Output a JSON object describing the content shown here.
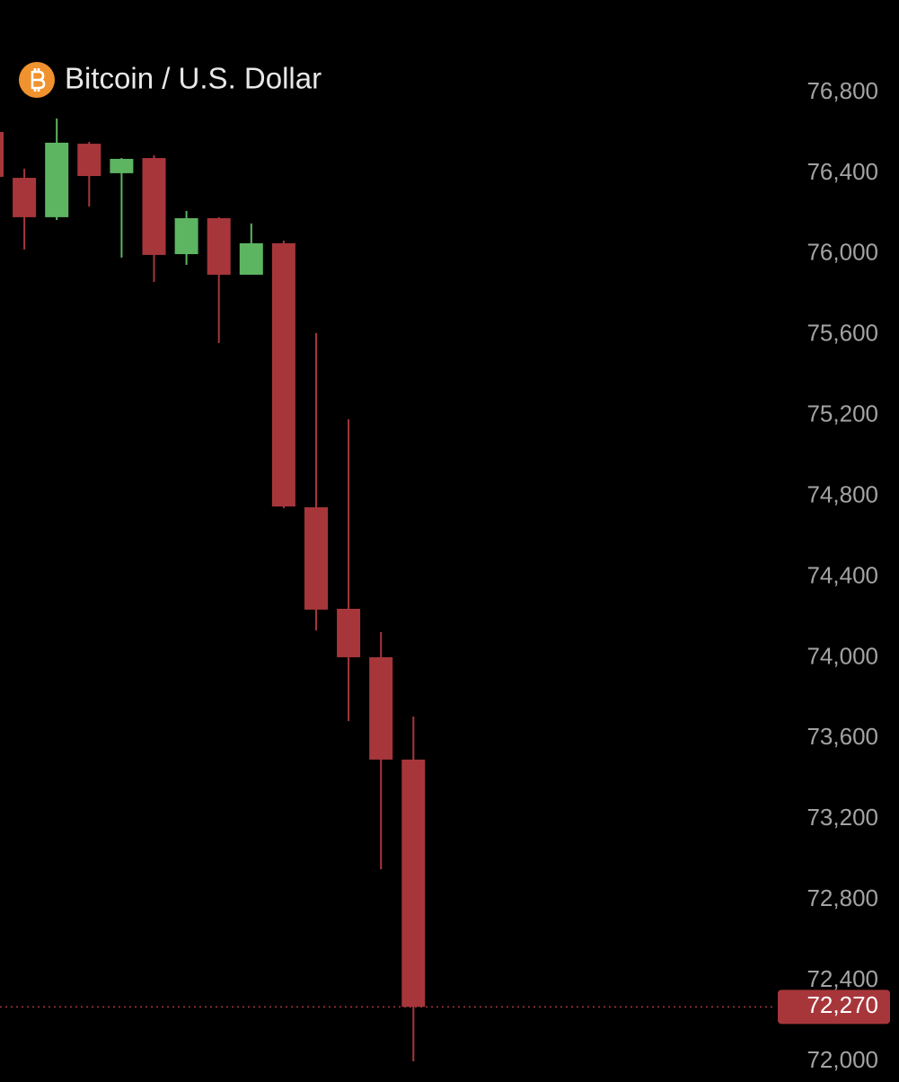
{
  "chart_data": {
    "type": "candlestick",
    "title": "Bitcoin / U.S. Dollar",
    "categories": [
      null,
      null,
      null,
      null,
      null,
      null,
      null,
      null,
      null,
      null,
      null,
      null,
      null,
      null
    ],
    "open": [
      76604,
      76377,
      76182,
      76546,
      76400,
      76475,
      75999,
      76177,
      75897,
      76053,
      74745,
      74242,
      74002,
      73495
    ],
    "high": [
      76610,
      76422,
      76671,
      76555,
      76475,
      76489,
      76213,
      76182,
      76151,
      76066,
      75608,
      75181,
      74127,
      73708
    ],
    "low": [
      76380,
      76022,
      76168,
      76235,
      75982,
      75861,
      75946,
      75559,
      75897,
      74740,
      74135,
      73686,
      72952,
      72000
    ],
    "close": [
      76382,
      76182,
      76551,
      76386,
      76471,
      75995,
      76177,
      75897,
      76053,
      74749,
      74238,
      74002,
      73495,
      72270
    ],
    "up_color": "#5db562",
    "down_color": "#a7363b",
    "ylim": [
      71920,
      77258
    ],
    "yticks": [
      {
        "value": 76800,
        "label": "76,800"
      },
      {
        "value": 76400,
        "label": "76,400"
      },
      {
        "value": 76000,
        "label": "76,000"
      },
      {
        "value": 75600,
        "label": "75,600"
      },
      {
        "value": 75200,
        "label": "75,200"
      },
      {
        "value": 74800,
        "label": "74,800"
      },
      {
        "value": 74400,
        "label": "74,400"
      },
      {
        "value": 74000,
        "label": "74,000"
      },
      {
        "value": 73600,
        "label": "73,600"
      },
      {
        "value": 73200,
        "label": "73,200"
      },
      {
        "value": 72800,
        "label": "72,800"
      },
      {
        "value": 72400,
        "label": "72,400"
      },
      {
        "value": 72000,
        "label": "72,000"
      }
    ],
    "last_price": {
      "value": 72270,
      "label": "72,270"
    }
  }
}
